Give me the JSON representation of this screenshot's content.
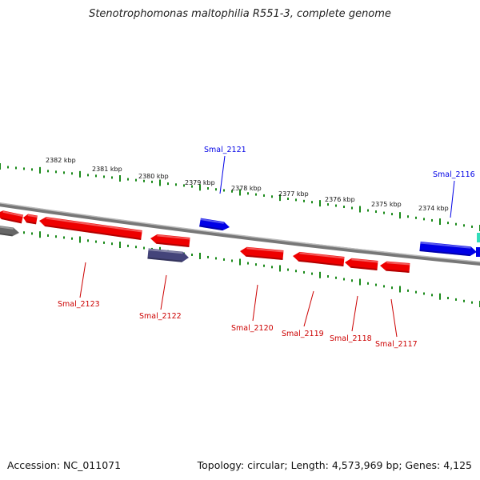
{
  "title": "Stenotrophomonas maltophilia R551-3, complete genome",
  "footer": {
    "accession": "Accession: NC_011071",
    "summary": "Topology: circular; Length: 4,573,969 bp; Genes: 4,125"
  },
  "colors": {
    "forward": "#0000e6",
    "reverse": "#ee0000",
    "other": "#44447a",
    "ticks": "#1a8a1a",
    "backbone": "#888888",
    "teal": "#33ddbb"
  },
  "scale_labels": [
    "2382 kbp",
    "2381 kbp",
    "2380 kbp",
    "2379 kbp",
    "2378 kbp",
    "2377 kbp",
    "2376 kbp",
    "2375 kbp",
    "2374 kbp"
  ],
  "genes": {
    "forward": [
      {
        "name": "Smal_2121"
      },
      {
        "name": "Smal_2116"
      }
    ],
    "reverse": [
      {
        "name": "Smal_2123"
      },
      {
        "name": "Smal_2122"
      },
      {
        "name": "Smal_2120"
      },
      {
        "name": "Smal_2119"
      },
      {
        "name": "Smal_2118"
      },
      {
        "name": "Smal_2117"
      }
    ]
  }
}
